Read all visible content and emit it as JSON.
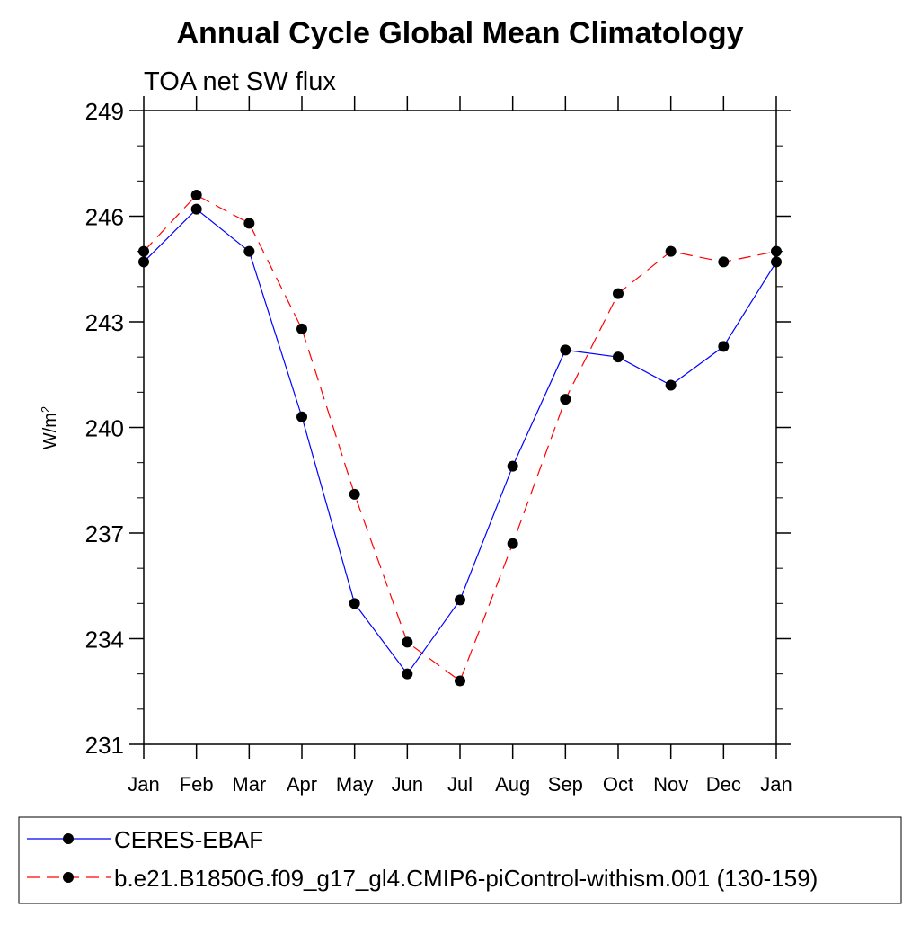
{
  "chart_data": {
    "type": "line",
    "title": "Annual Cycle Global Mean Climatology",
    "subtitle": "TOA net SW flux",
    "ylabel": "W/m",
    "ylabel_superscript": "2",
    "categories": [
      "Jan",
      "Feb",
      "Mar",
      "Apr",
      "May",
      "Jun",
      "Jul",
      "Aug",
      "Sep",
      "Oct",
      "Nov",
      "Dec",
      "Jan"
    ],
    "ylim": [
      231,
      249
    ],
    "y_ticks": [
      "249",
      "246",
      "243",
      "240",
      "237",
      "234",
      "231"
    ],
    "grid": false,
    "legend_position": "bottom",
    "series": [
      {
        "name": "CERES-EBAF",
        "color": "#0000ff",
        "line_style": "solid",
        "marker": "filled-circle",
        "values": [
          244.7,
          246.2,
          245.0,
          240.3,
          235.0,
          233.0,
          235.1,
          238.9,
          242.2,
          242.0,
          241.2,
          242.3,
          244.7
        ]
      },
      {
        "name": "b.e21.B1850G.f09_g17_gl4.CMIP6-piControl-withism.001 (130-159)",
        "color": "#ff0000",
        "line_style": "dashed",
        "marker": "filled-circle",
        "values": [
          245.0,
          246.6,
          245.8,
          242.8,
          238.1,
          233.9,
          232.8,
          236.7,
          240.8,
          243.8,
          245.0,
          244.7,
          245.0
        ]
      }
    ]
  }
}
